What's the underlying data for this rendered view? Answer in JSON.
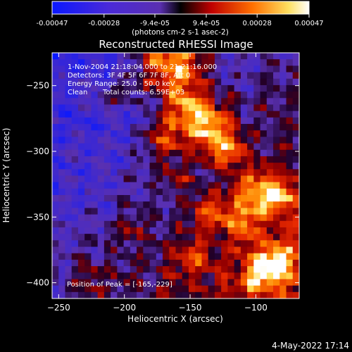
{
  "chart_data": {
    "type": "heatmap",
    "title": "Reconstructed RHESSI Image",
    "xlabel": "Heliocentric X (arcsec)",
    "ylabel": "Heliocentric Y (arcsec)",
    "xlim": [
      -255,
      -67
    ],
    "ylim": [
      -412,
      -225
    ],
    "x_ticks": [
      -250,
      -200,
      -150,
      -100
    ],
    "y_ticks": [
      -250,
      -300,
      -350,
      -400
    ],
    "colorbar": {
      "range": [
        -0.00047,
        0.00047
      ],
      "tick_labels": [
        "-0.00047",
        "-0.00028",
        "-9.4e-05",
        "9.4e-05",
        "0.00028",
        "0.00047"
      ],
      "tick_values": [
        -0.00047,
        -0.00028,
        -9.4e-05,
        9.4e-05,
        0.00028,
        0.00047
      ],
      "unit_label": "(photons cm-2 s-1 asec-2)"
    },
    "annotations": {
      "time": "1-Nov-2004 21:18:04.000 to 21:21:16.000",
      "detectors": "Detectors: 3F 4F 5F 6F 7F 8F, Att 0",
      "energy": "Energy Range: 25.0 - 50.0 keV",
      "method": "Clean",
      "counts": "Total counts: 6.59E+03",
      "peak": "Position of Peak = [-165,-229]"
    },
    "peak_position": [
      -165,
      -229
    ],
    "colormap": [
      "#0a18ff",
      "#5a2fb0",
      "#000000",
      "#c00000",
      "#ff7000",
      "#ffff80",
      "#ffffff"
    ]
  },
  "footer": {
    "date": "4-May-2022 17:14"
  }
}
